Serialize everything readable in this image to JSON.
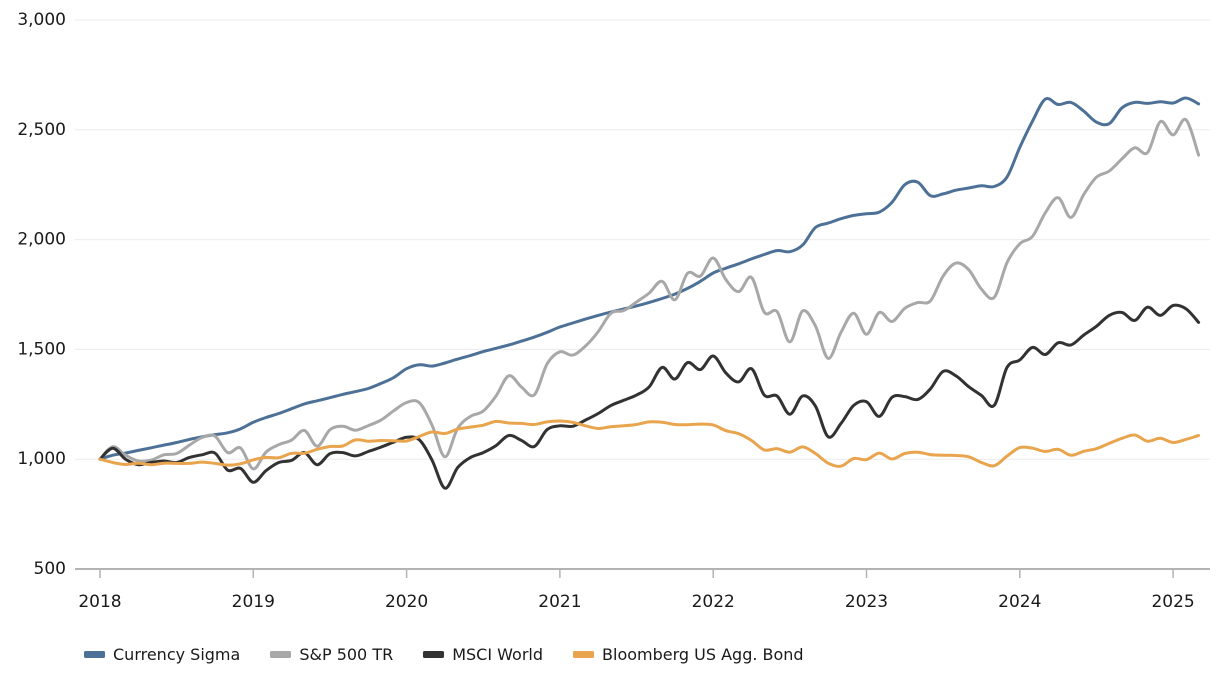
{
  "chart_data": {
    "type": "line",
    "title": "",
    "grid": "horizontal",
    "legend_position": "bottom-left",
    "colors": {
      "axis_line": "#b3b3b3",
      "tick_mark": "#b3b3b3",
      "gridline": "#ebebeb",
      "tick_text": "#1a1a1a"
    },
    "x_axis": {
      "tick_values": [
        2018,
        2019,
        2020,
        2021,
        2022,
        2023,
        2024,
        2025
      ],
      "tick_labels": [
        "2018",
        "2019",
        "2020",
        "2021",
        "2022",
        "2023",
        "2024",
        "2025"
      ]
    },
    "y_axis": {
      "range": [
        500,
        3000
      ],
      "tick_values": [
        500,
        1000,
        1500,
        2000,
        2500,
        3000
      ],
      "tick_labels": [
        "500",
        "1,000",
        "1,500",
        "2,000",
        "2,500",
        "3,000"
      ]
    },
    "points_start_year": 2018,
    "points_interval_years": 0.0833333,
    "series": [
      {
        "name": "Currency Sigma",
        "color": "#4d7196",
        "values": [
          1000,
          1018,
          1028,
          1040,
          1052,
          1064,
          1076,
          1090,
          1102,
          1112,
          1120,
          1138,
          1168,
          1190,
          1208,
          1230,
          1252,
          1266,
          1280,
          1295,
          1308,
          1322,
          1345,
          1372,
          1412,
          1430,
          1424,
          1438,
          1456,
          1472,
          1490,
          1505,
          1520,
          1538,
          1556,
          1578,
          1602,
          1620,
          1638,
          1655,
          1670,
          1684,
          1698,
          1714,
          1732,
          1752,
          1778,
          1810,
          1848,
          1870,
          1890,
          1912,
          1932,
          1950,
          1945,
          1975,
          2055,
          2075,
          2095,
          2110,
          2118,
          2125,
          2170,
          2250,
          2262,
          2200,
          2208,
          2225,
          2235,
          2245,
          2242,
          2285,
          2420,
          2540,
          2640,
          2615,
          2625,
          2585,
          2535,
          2528,
          2600,
          2625,
          2620,
          2628,
          2622,
          2645,
          2618
        ]
      },
      {
        "name": "S&P 500 TR",
        "color": "#a8a8a8",
        "values": [
          1000,
          1057,
          1018,
          992,
          996,
          1020,
          1026,
          1064,
          1099,
          1105,
          1030,
          1051,
          956,
          1033,
          1066,
          1087,
          1131,
          1059,
          1134,
          1150,
          1132,
          1153,
          1178,
          1221,
          1258,
          1257,
          1154,
          1011,
          1141,
          1195,
          1219,
          1288,
          1380,
          1328,
          1293,
          1434,
          1489,
          1474,
          1515,
          1581,
          1665,
          1677,
          1716,
          1757,
          1810,
          1726,
          1847,
          1834,
          1916,
          1817,
          1763,
          1828,
          1669,
          1672,
          1534,
          1675,
          1607,
          1459,
          1577,
          1665,
          1569,
          1668,
          1627,
          1687,
          1713,
          1721,
          1834,
          1893,
          1863,
          1774,
          1737,
          1895,
          1981,
          2015,
          2122,
          2191,
          2101,
          2205,
          2284,
          2312,
          2368,
          2418,
          2396,
          2537,
          2477,
          2546,
          2385
        ]
      },
      {
        "name": "MSCI World",
        "color": "#323232",
        "values": [
          1000,
          1050,
          1000,
          975,
          985,
          992,
          985,
          1008,
          1020,
          1028,
          950,
          958,
          895,
          948,
          985,
          995,
          1030,
          975,
          1025,
          1030,
          1015,
          1035,
          1055,
          1078,
          1100,
          1088,
          995,
          868,
          962,
          1008,
          1030,
          1062,
          1108,
          1085,
          1058,
          1135,
          1152,
          1150,
          1178,
          1208,
          1245,
          1268,
          1292,
          1330,
          1418,
          1365,
          1440,
          1408,
          1470,
          1392,
          1352,
          1412,
          1292,
          1288,
          1205,
          1288,
          1242,
          1102,
          1162,
          1245,
          1262,
          1195,
          1282,
          1285,
          1272,
          1320,
          1400,
          1380,
          1330,
          1290,
          1245,
          1418,
          1452,
          1509,
          1477,
          1530,
          1520,
          1565,
          1605,
          1655,
          1668,
          1632,
          1692,
          1655,
          1700,
          1685,
          1623
        ]
      },
      {
        "name": "Bloomberg US Agg. Bond",
        "color": "#e9a44e",
        "values": [
          1000,
          985,
          976,
          982,
          975,
          982,
          981,
          981,
          987,
          981,
          973,
          979,
          997,
          1008,
          1007,
          1027,
          1027,
          1045,
          1058,
          1060,
          1088,
          1082,
          1085,
          1084,
          1083,
          1104,
          1124,
          1117,
          1137,
          1146,
          1155,
          1172,
          1165,
          1163,
          1158,
          1170,
          1174,
          1168,
          1152,
          1140,
          1148,
          1152,
          1158,
          1170,
          1168,
          1158,
          1157,
          1160,
          1156,
          1130,
          1116,
          1085,
          1042,
          1048,
          1032,
          1056,
          1026,
          982,
          968,
          1003,
          998,
          1028,
          1001,
          1026,
          1032,
          1021,
          1018,
          1017,
          1011,
          985,
          970,
          1014,
          1053,
          1050,
          1035,
          1045,
          1018,
          1036,
          1048,
          1072,
          1095,
          1110,
          1082,
          1095,
          1076,
          1090,
          1108
        ]
      }
    ]
  }
}
